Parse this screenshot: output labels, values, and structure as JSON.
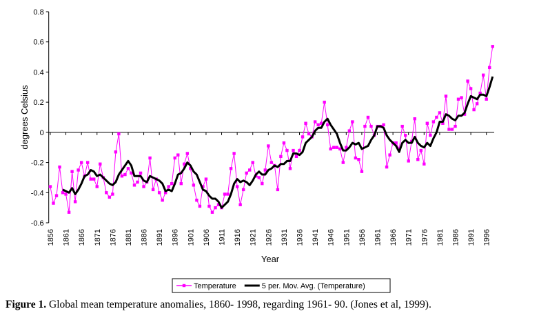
{
  "chart_data": {
    "type": "line",
    "x_label": "Year",
    "y_label": "degrees Celsius",
    "caption_label": "Figure 1.",
    "caption": "Global mean temperature anomalies, 1860- 1998, regarding 1961- 90. (Jones et al, 1999).",
    "legend": "bottom",
    "x": [
      1856,
      1857,
      1858,
      1859,
      1860,
      1861,
      1862,
      1863,
      1864,
      1865,
      1866,
      1867,
      1868,
      1869,
      1870,
      1871,
      1872,
      1873,
      1874,
      1875,
      1876,
      1877,
      1878,
      1879,
      1880,
      1881,
      1882,
      1883,
      1884,
      1885,
      1886,
      1887,
      1888,
      1889,
      1890,
      1891,
      1892,
      1893,
      1894,
      1895,
      1896,
      1897,
      1898,
      1899,
      1900,
      1901,
      1902,
      1903,
      1904,
      1905,
      1906,
      1907,
      1908,
      1909,
      1910,
      1911,
      1912,
      1913,
      1914,
      1915,
      1916,
      1917,
      1918,
      1919,
      1920,
      1921,
      1922,
      1923,
      1924,
      1925,
      1926,
      1927,
      1928,
      1929,
      1930,
      1931,
      1932,
      1933,
      1934,
      1935,
      1936,
      1937,
      1938,
      1939,
      1940,
      1941,
      1942,
      1943,
      1944,
      1945,
      1946,
      1947,
      1948,
      1949,
      1950,
      1951,
      1952,
      1953,
      1954,
      1955,
      1956,
      1957,
      1958,
      1959,
      1960,
      1961,
      1962,
      1963,
      1964,
      1965,
      1966,
      1967,
      1968,
      1969,
      1970,
      1971,
      1972,
      1973,
      1974,
      1975,
      1976,
      1977,
      1978,
      1979,
      1980,
      1981,
      1982,
      1983,
      1984,
      1985,
      1986,
      1987,
      1988,
      1989,
      1990,
      1991,
      1992,
      1993,
      1994,
      1995,
      1996,
      1997,
      1998
    ],
    "series": [
      {
        "name": "Temperature",
        "color": "#ff00ff",
        "style": "markers",
        "values": [
          -0.36,
          -0.47,
          -0.42,
          -0.23,
          -0.4,
          -0.41,
          -0.53,
          -0.26,
          -0.46,
          -0.25,
          -0.2,
          -0.29,
          -0.2,
          -0.31,
          -0.31,
          -0.36,
          -0.21,
          -0.3,
          -0.4,
          -0.43,
          -0.41,
          -0.13,
          -0.01,
          -0.29,
          -0.28,
          -0.24,
          -0.27,
          -0.35,
          -0.33,
          -0.27,
          -0.36,
          -0.33,
          -0.17,
          -0.38,
          -0.31,
          -0.4,
          -0.45,
          -0.4,
          -0.36,
          -0.34,
          -0.17,
          -0.15,
          -0.34,
          -0.21,
          -0.14,
          -0.24,
          -0.35,
          -0.45,
          -0.49,
          -0.36,
          -0.31,
          -0.49,
          -0.53,
          -0.5,
          -0.48,
          -0.5,
          -0.41,
          -0.41,
          -0.24,
          -0.14,
          -0.36,
          -0.48,
          -0.38,
          -0.27,
          -0.25,
          -0.2,
          -0.29,
          -0.3,
          -0.34,
          -0.25,
          -0.09,
          -0.2,
          -0.22,
          -0.38,
          -0.16,
          -0.07,
          -0.12,
          -0.24,
          -0.12,
          -0.16,
          -0.12,
          -0.03,
          0.06,
          -0.01,
          -0.03,
          0.07,
          0.05,
          0.06,
          0.2,
          0.05,
          -0.11,
          -0.1,
          -0.1,
          -0.11,
          -0.2,
          -0.1,
          0.01,
          0.07,
          -0.17,
          -0.18,
          -0.26,
          0.04,
          0.1,
          0.04,
          -0.02,
          0.04,
          0.04,
          0.05,
          -0.23,
          -0.15,
          -0.07,
          -0.07,
          -0.11,
          0.04,
          -0.02,
          -0.19,
          -0.06,
          0.09,
          -0.18,
          -0.12,
          -0.21,
          0.06,
          -0.02,
          0.07,
          0.1,
          0.13,
          0.06,
          0.24,
          0.02,
          0.02,
          0.04,
          0.22,
          0.23,
          0.12,
          0.34,
          0.29,
          0.15,
          0.19,
          0.26,
          0.38,
          0.22,
          0.43,
          0.57
        ]
      },
      {
        "name": "5 per. Mov. Avg. (Temperature)",
        "color": "#000000",
        "style": "thick",
        "values": [
          null,
          null,
          null,
          null,
          -0.38,
          -0.39,
          -0.4,
          -0.37,
          -0.41,
          -0.38,
          -0.34,
          -0.29,
          -0.28,
          -0.25,
          -0.26,
          -0.29,
          -0.28,
          -0.3,
          -0.32,
          -0.34,
          -0.35,
          -0.33,
          -0.28,
          -0.25,
          -0.22,
          -0.19,
          -0.22,
          -0.29,
          -0.29,
          -0.29,
          -0.32,
          -0.33,
          -0.29,
          -0.3,
          -0.31,
          -0.32,
          -0.34,
          -0.39,
          -0.38,
          -0.39,
          -0.34,
          -0.28,
          -0.27,
          -0.24,
          -0.2,
          -0.22,
          -0.26,
          -0.28,
          -0.33,
          -0.38,
          -0.39,
          -0.42,
          -0.44,
          -0.44,
          -0.46,
          -0.5,
          -0.48,
          -0.46,
          -0.41,
          -0.34,
          -0.31,
          -0.33,
          -0.32,
          -0.33,
          -0.35,
          -0.32,
          -0.28,
          -0.26,
          -0.28,
          -0.28,
          -0.25,
          -0.24,
          -0.22,
          -0.23,
          -0.21,
          -0.21,
          -0.19,
          -0.19,
          -0.14,
          -0.14,
          -0.15,
          -0.13,
          -0.07,
          -0.05,
          -0.03,
          0.01,
          0.03,
          0.03,
          0.07,
          0.09,
          0.05,
          0.02,
          -0.01,
          -0.07,
          -0.12,
          -0.12,
          -0.1,
          -0.07,
          -0.08,
          -0.07,
          -0.11,
          -0.1,
          -0.09,
          -0.05,
          -0.02,
          0.04,
          0.04,
          0.03,
          -0.02,
          -0.05,
          -0.07,
          -0.09,
          -0.13,
          -0.07,
          -0.05,
          -0.07,
          -0.07,
          -0.03,
          -0.07,
          -0.09,
          -0.1,
          -0.07,
          -0.09,
          -0.04,
          0.0,
          0.07,
          0.07,
          0.12,
          0.11,
          0.09,
          0.08,
          0.11,
          0.11,
          0.13,
          0.19,
          0.24,
          0.23,
          0.22,
          0.25,
          0.25,
          0.24,
          0.3,
          0.37
        ]
      }
    ],
    "xlim": [
      1855.5,
      1998.5
    ],
    "xticks": [
      1856,
      1861,
      1866,
      1871,
      1876,
      1881,
      1886,
      1891,
      1896,
      1901,
      1906,
      1911,
      1916,
      1921,
      1926,
      1931,
      1936,
      1941,
      1946,
      1951,
      1956,
      1961,
      1966,
      1971,
      1976,
      1981,
      1986,
      1991,
      1996
    ],
    "ylim": [
      -0.6,
      0.8
    ],
    "yticks": [
      -0.6,
      -0.4,
      -0.2,
      0,
      0.2,
      0.4,
      0.6,
      0.8
    ],
    "grid": false
  }
}
